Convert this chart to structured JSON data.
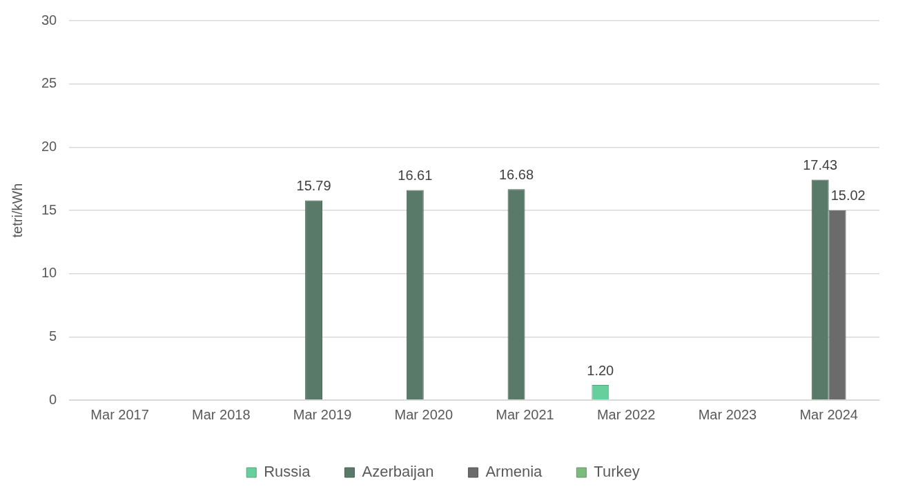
{
  "chart_data": {
    "type": "bar",
    "ylabel": "tetri/kWh",
    "categories": [
      "Mar 2017",
      "Mar 2018",
      "Mar 2019",
      "Mar 2020",
      "Mar 2021",
      "Mar 2022",
      "Mar 2023",
      "Mar 2024"
    ],
    "series": [
      {
        "name": "Russia",
        "color": "#66cf9c",
        "values": [
          null,
          null,
          null,
          null,
          null,
          1.2,
          null,
          null
        ],
        "value_labels": [
          null,
          null,
          null,
          null,
          null,
          "1.20",
          null,
          null
        ]
      },
      {
        "name": "Azerbaijan",
        "color": "#5a7a69",
        "values": [
          null,
          null,
          15.79,
          16.61,
          16.68,
          null,
          null,
          17.43
        ],
        "value_labels": [
          null,
          null,
          "15.79",
          "16.61",
          "16.68",
          null,
          null,
          "17.43"
        ]
      },
      {
        "name": "Armenia",
        "color": "#6b6b6b",
        "values": [
          null,
          null,
          null,
          null,
          null,
          null,
          null,
          15.02
        ],
        "value_labels": [
          null,
          null,
          null,
          null,
          null,
          null,
          null,
          "15.02"
        ]
      },
      {
        "name": "Turkey",
        "color": "#7dbb7d",
        "values": [
          null,
          null,
          null,
          null,
          null,
          null,
          null,
          null
        ]
      }
    ],
    "ylim": [
      0,
      30
    ],
    "yticks": [
      0,
      5,
      10,
      15,
      20,
      25,
      30
    ],
    "grid": "y",
    "legend": "bottom"
  }
}
